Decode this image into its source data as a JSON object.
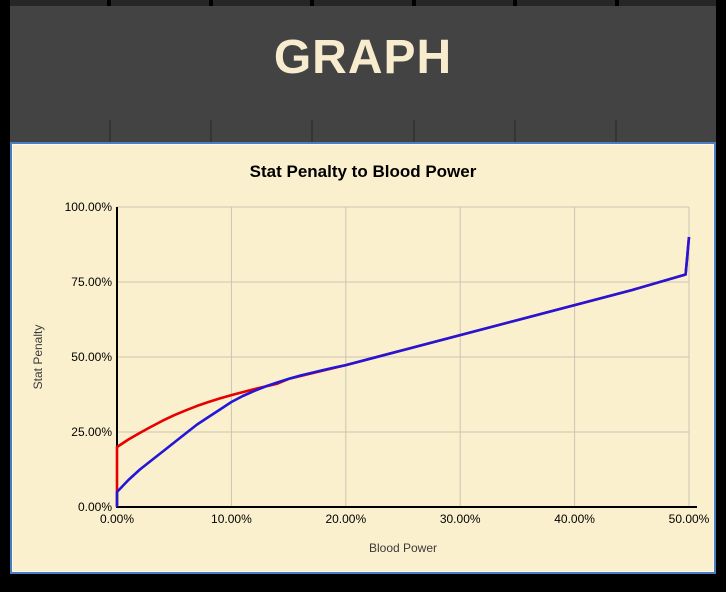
{
  "header": {
    "title": "GRAPH",
    "tab_count": 7
  },
  "colors": {
    "page_bg": "#000000",
    "header_bg": "#434343",
    "header_text": "#F7EDCE",
    "tab_sep": "#353535",
    "strip_cell": "#262626",
    "panel_bg": "#FBF0CE",
    "panel_border": "#4A7EC3",
    "grid": "#C9C4B4",
    "axis": "#000000"
  },
  "chart_data": {
    "type": "line",
    "title": "Stat Penalty to Blood Power",
    "xlabel": "Blood Power",
    "ylabel": "Stat Penalty",
    "xlim": [
      0,
      50
    ],
    "ylim": [
      0,
      100
    ],
    "grid": true,
    "legend": "none",
    "x_ticks": [
      0,
      10,
      20,
      30,
      40,
      50
    ],
    "x_tick_labels": [
      "0.00%",
      "10.00%",
      "20.00%",
      "30.00%",
      "40.00%",
      "50.00%"
    ],
    "y_ticks": [
      0,
      25,
      50,
      75,
      100
    ],
    "y_tick_labels": [
      "0.00%",
      "25.00%",
      "50.00%",
      "75.00%",
      "100.00%"
    ],
    "series": [
      {
        "name": "red",
        "color": "#E60000",
        "points": [
          [
            0,
            0
          ],
          [
            0,
            20
          ],
          [
            1,
            22.5
          ],
          [
            2,
            24.7
          ],
          [
            3,
            26.8
          ],
          [
            4,
            28.8
          ],
          [
            5,
            30.6
          ],
          [
            6,
            32.2
          ],
          [
            7,
            33.7
          ],
          [
            8,
            35.0
          ],
          [
            9,
            36.2
          ],
          [
            10,
            37.3
          ],
          [
            11,
            38.3
          ],
          [
            12,
            39.3
          ],
          [
            13,
            40.2
          ],
          [
            14,
            41.1
          ],
          [
            15,
            42.7
          ],
          [
            20,
            47.3
          ],
          [
            25,
            52.3
          ],
          [
            30,
            57.3
          ],
          [
            35,
            62.3
          ],
          [
            40,
            67.3
          ],
          [
            45,
            72.3
          ],
          [
            49.7,
            77.5
          ],
          [
            50,
            90
          ]
        ]
      },
      {
        "name": "blue",
        "color": "#2416D8",
        "points": [
          [
            0,
            0
          ],
          [
            0,
            5
          ],
          [
            1,
            9
          ],
          [
            2,
            12.5
          ],
          [
            3,
            15.5
          ],
          [
            4,
            18.5
          ],
          [
            5,
            21.5
          ],
          [
            6,
            24.5
          ],
          [
            7,
            27.5
          ],
          [
            8,
            30
          ],
          [
            9,
            32.5
          ],
          [
            10,
            35
          ],
          [
            11,
            37
          ],
          [
            12,
            38.7
          ],
          [
            13,
            40.2
          ],
          [
            14,
            41.5
          ],
          [
            15,
            42.7
          ],
          [
            16,
            43.8
          ],
          [
            17,
            44.7
          ],
          [
            18,
            45.6
          ],
          [
            19,
            46.5
          ],
          [
            20,
            47.3
          ],
          [
            25,
            52.3
          ],
          [
            30,
            57.3
          ],
          [
            35,
            62.3
          ],
          [
            40,
            67.3
          ],
          [
            45,
            72.3
          ],
          [
            49.7,
            77.5
          ],
          [
            50,
            90
          ]
        ]
      }
    ]
  }
}
